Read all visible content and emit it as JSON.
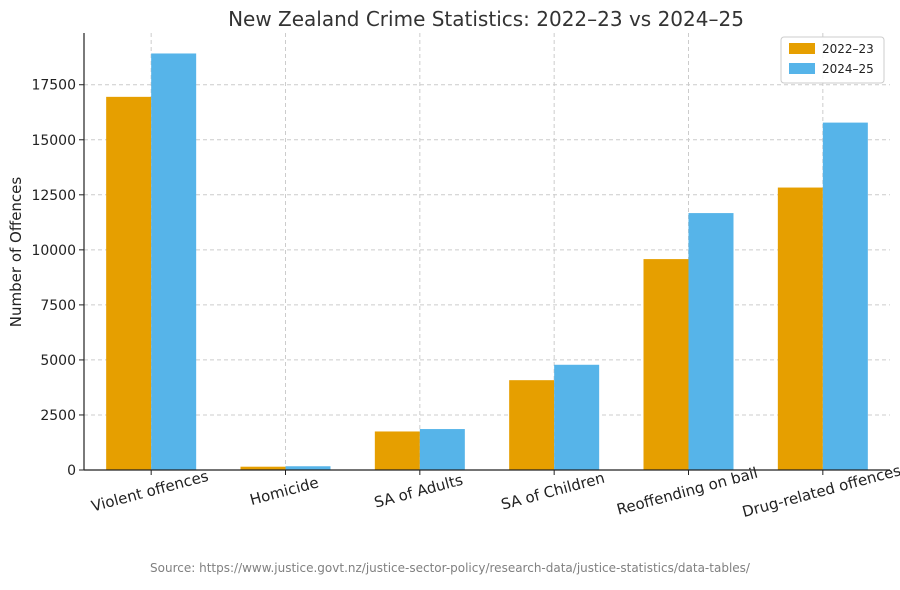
{
  "chart_data": {
    "type": "bar",
    "title": "New Zealand Crime Statistics: 2022–23 vs 2024–25",
    "xlabel": "",
    "ylabel": "Number of Offences",
    "categories": [
      "Violent offences",
      "Homicide",
      "SA of Adults",
      "SA of Children",
      "Reoffending on bail",
      "Drug-related offences"
    ],
    "series": [
      {
        "name": "2022–23",
        "color": "#E69F00",
        "values": [
          16950,
          150,
          1750,
          4080,
          9580,
          12830
        ]
      },
      {
        "name": "2024–25",
        "color": "#56B4E9",
        "values": [
          18920,
          170,
          1860,
          4780,
          11670,
          15780
        ]
      }
    ],
    "yticks": [
      0,
      2500,
      5000,
      7500,
      10000,
      12500,
      15000,
      17500
    ],
    "ylim": [
      0,
      19850
    ],
    "grid": true,
    "legend_position": "top-right"
  },
  "footer": {
    "source": "Source: https://www.justice.govt.nz/justice-sector-policy/research-data/justice-statistics/data-tables/"
  }
}
